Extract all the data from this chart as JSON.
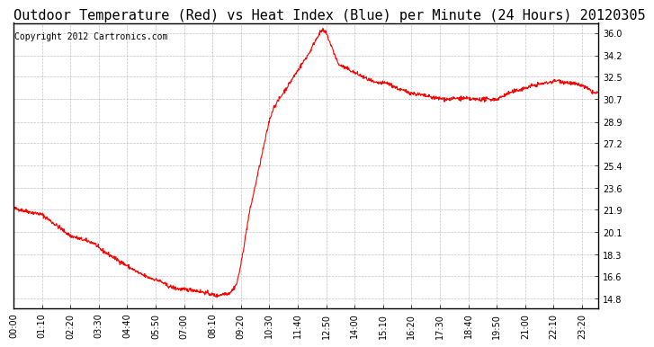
{
  "title": "Outdoor Temperature (Red) vs Heat Index (Blue) per Minute (24 Hours) 20120305",
  "copyright": "Copyright 2012 Cartronics.com",
  "yticks": [
    14.8,
    16.6,
    18.3,
    20.1,
    21.9,
    23.6,
    25.4,
    27.2,
    28.9,
    30.7,
    32.5,
    34.2,
    36.0
  ],
  "ylim": [
    14.0,
    36.8
  ],
  "xtick_labels": [
    "00:00",
    "01:10",
    "02:20",
    "03:30",
    "04:40",
    "05:50",
    "07:00",
    "08:10",
    "09:20",
    "10:30",
    "11:40",
    "12:50",
    "14:00",
    "15:10",
    "16:20",
    "17:30",
    "18:40",
    "19:50",
    "21:00",
    "22:10",
    "23:20"
  ],
  "line_color": "#ff0000",
  "background_color": "#ffffff",
  "grid_color": "#aaaaaa",
  "title_fontsize": 11,
  "copyright_fontsize": 7,
  "tick_fontsize": 7,
  "temperature_profile": {
    "times_minutes": [
      0,
      70,
      140,
      200,
      210,
      260,
      310,
      330,
      360,
      380,
      400,
      420,
      440,
      480,
      500,
      510,
      520,
      530,
      540,
      550,
      560,
      570,
      580,
      590,
      600,
      610,
      620,
      630,
      640,
      650,
      660,
      670,
      680,
      690,
      700,
      710,
      720,
      730,
      740,
      750,
      760,
      770,
      800,
      830,
      860,
      890,
      920,
      950,
      980,
      1010,
      1040,
      1070,
      1100,
      1130,
      1160,
      1190,
      1220,
      1250,
      1280,
      1310,
      1340,
      1370,
      1400,
      1430
    ],
    "values": [
      22.0,
      21.5,
      19.8,
      19.2,
      18.8,
      17.8,
      16.8,
      16.5,
      16.2,
      15.8,
      15.6,
      15.5,
      15.5,
      15.2,
      15.0,
      15.1,
      15.2,
      15.2,
      15.5,
      16.0,
      17.5,
      19.5,
      21.5,
      23.0,
      24.5,
      26.0,
      27.5,
      29.0,
      30.0,
      30.5,
      31.0,
      31.5,
      32.0,
      32.5,
      33.0,
      33.5,
      34.0,
      34.5,
      35.2,
      35.8,
      36.2,
      36.0,
      33.5,
      33.0,
      32.5,
      32.0,
      32.0,
      31.5,
      31.2,
      31.0,
      30.8,
      30.7,
      30.8,
      30.7,
      30.7,
      30.7,
      31.2,
      31.5,
      31.8,
      32.0,
      32.2,
      32.0,
      31.8,
      31.2
    ]
  }
}
